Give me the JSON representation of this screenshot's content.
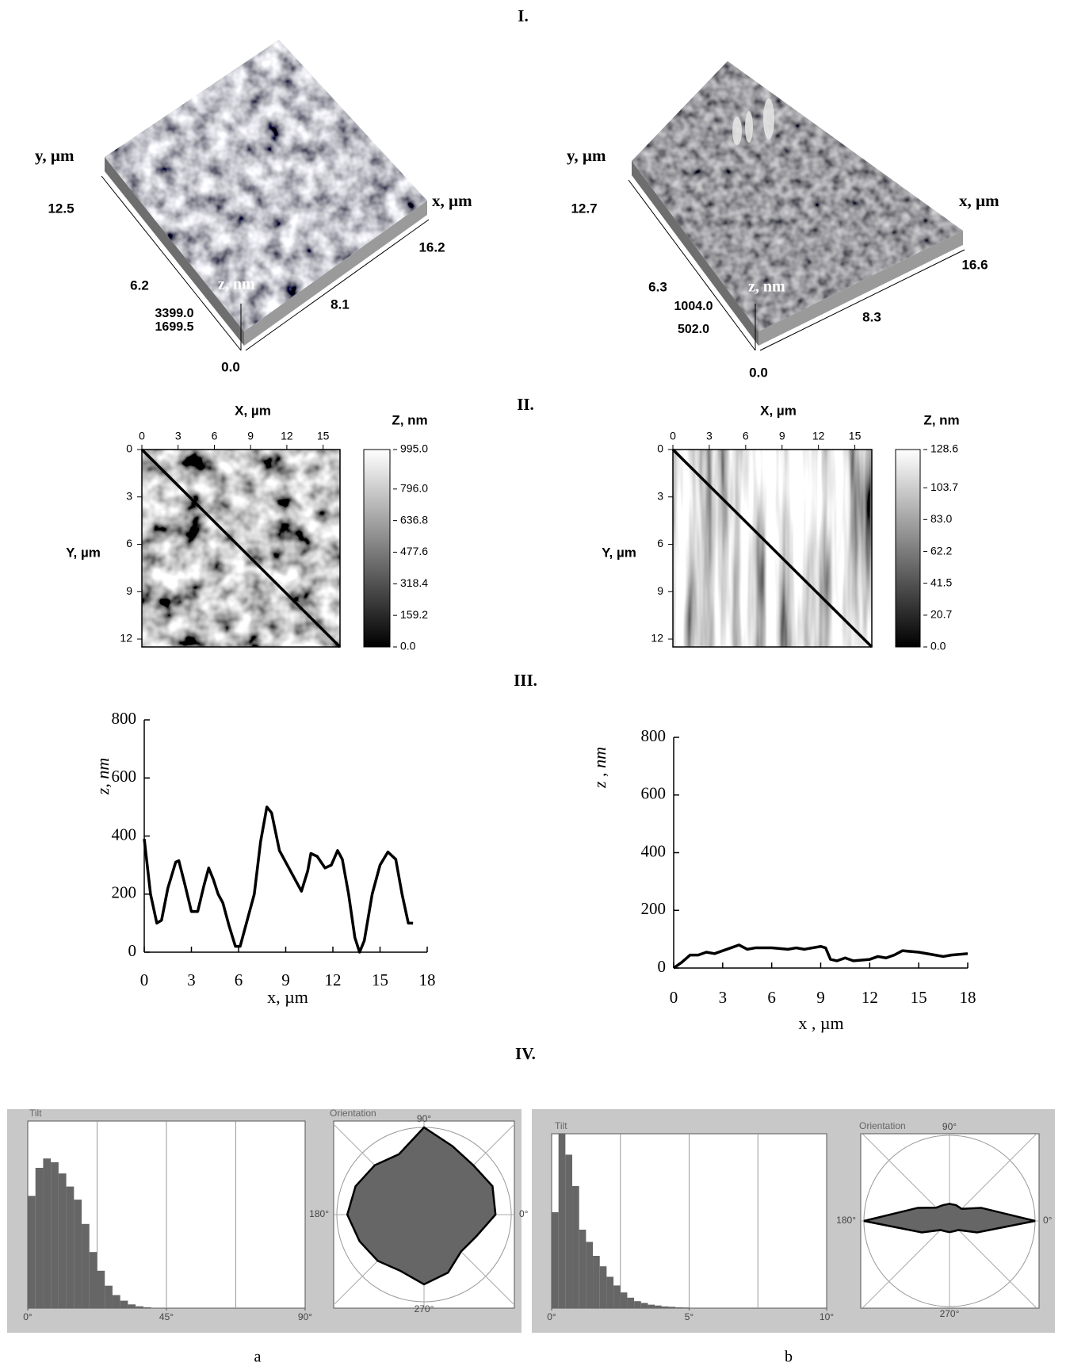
{
  "sections": [
    "I.",
    "II.",
    "III.",
    "IV."
  ],
  "surfaces": [
    {
      "y_label": "y, µm",
      "x_label": "x, µm",
      "z_label": "z, nm",
      "y_ticks": [
        "12.5",
        "6.2"
      ],
      "x_ticks": [
        "16.2",
        "8.1"
      ],
      "z_ticks": [
        "3399.0",
        "1699.5"
      ],
      "origin": "0.0"
    },
    {
      "y_label": "y, µm",
      "x_label": "x, µm",
      "z_label": "z, nm",
      "y_ticks": [
        "12.7",
        "6.3"
      ],
      "x_ticks": [
        "16.6",
        "8.3"
      ],
      "z_ticks": [
        "1004.0",
        "502.0"
      ],
      "origin": "0.0"
    }
  ],
  "maps": [
    {
      "x_label": "X, µm",
      "y_label": "Y, µm",
      "z_label": "Z, nm",
      "xlim": [
        0,
        16.4
      ],
      "xticks": [
        0,
        3,
        6,
        9,
        12,
        15
      ],
      "ylim": [
        0,
        12.5
      ],
      "yticks": [
        0,
        3,
        6,
        9,
        12
      ],
      "zlim": [
        0,
        995
      ],
      "zticks": [
        {
          "value": 995,
          "label": "995.0"
        },
        {
          "value": 796,
          "label": "796.0"
        },
        {
          "value": 636.8,
          "label": "636.8"
        },
        {
          "value": 477.6,
          "label": "477.6"
        },
        {
          "value": 318.4,
          "label": "318.4"
        },
        {
          "value": 159.2,
          "label": "159.2"
        },
        {
          "value": 0,
          "label": "0.0"
        }
      ]
    },
    {
      "x_label": "X, µm",
      "y_label": "Y, µm",
      "z_label": "Z, nm",
      "xlim": [
        0,
        16.4
      ],
      "xticks": [
        0,
        3,
        6,
        9,
        12,
        15
      ],
      "ylim": [
        0,
        12.5
      ],
      "yticks": [
        0,
        3,
        6,
        9,
        12
      ],
      "zlim": [
        0,
        128.6
      ],
      "zticks": [
        {
          "value": 128.6,
          "label": "128.6"
        },
        {
          "value": 103.7,
          "label": "103.7"
        },
        {
          "value": 83,
          "label": "83.0"
        },
        {
          "value": 62.2,
          "label": "62.2"
        },
        {
          "value": 41.5,
          "label": "41.5"
        },
        {
          "value": 20.7,
          "label": "20.7"
        },
        {
          "value": 0,
          "label": "0.0"
        }
      ]
    }
  ],
  "chart_data": [
    {
      "type": "line",
      "x_label": "x,  µm",
      "y_label": "z, nm",
      "color": "#000000",
      "x": [
        0,
        0.4,
        0.8,
        1.1,
        1.5,
        2,
        2.2,
        2.6,
        3,
        3.4,
        3.8,
        4.1,
        4.4,
        4.7,
        5,
        5.4,
        5.8,
        6.1,
        6.5,
        7,
        7.4,
        7.8,
        8.1,
        8.6,
        9.3,
        10,
        10.4,
        10.6,
        11,
        11.5,
        11.9,
        12.3,
        12.6,
        13,
        13.4,
        13.7,
        14,
        14.5,
        15,
        15.5,
        16,
        16.4,
        16.8,
        17.1
      ],
      "values": [
        390,
        200,
        100,
        110,
        220,
        310,
        315,
        230,
        140,
        140,
        230,
        290,
        250,
        200,
        170,
        90,
        20,
        20,
        100,
        200,
        380,
        500,
        480,
        350,
        280,
        210,
        280,
        340,
        330,
        290,
        300,
        350,
        320,
        200,
        50,
        0,
        40,
        200,
        300,
        345,
        320,
        200,
        100,
        100
      ],
      "xlim": [
        0,
        18
      ],
      "ylim": [
        0,
        800
      ],
      "xticks": [
        0,
        3,
        6,
        9,
        12,
        15,
        18
      ],
      "yticks": [
        0,
        200,
        400,
        600,
        800
      ]
    },
    {
      "type": "line",
      "x_label": "x , µm",
      "y_label": "z , nm",
      "color": "#000000",
      "x": [
        0,
        0.5,
        1,
        1.5,
        2,
        2.5,
        3,
        3.5,
        4,
        4.5,
        5,
        6,
        7,
        7.5,
        8,
        9,
        9.3,
        9.6,
        10,
        10.5,
        11,
        12,
        12.5,
        13,
        13.5,
        14,
        15,
        16,
        16.5,
        17,
        18
      ],
      "values": [
        0,
        20,
        45,
        45,
        55,
        50,
        60,
        70,
        80,
        65,
        70,
        70,
        65,
        70,
        65,
        75,
        70,
        30,
        25,
        35,
        25,
        30,
        40,
        35,
        45,
        60,
        55,
        45,
        40,
        45,
        50
      ],
      "xlim": [
        0,
        18
      ],
      "ylim": [
        0,
        800
      ],
      "xticks": [
        0,
        3,
        6,
        9,
        12,
        15,
        18
      ],
      "yticks": [
        0,
        200,
        400,
        600,
        800
      ]
    },
    {
      "type": "histogram",
      "title": "Tilt",
      "color": "#666666",
      "bins": [
        0,
        2.5,
        5,
        7.5,
        10,
        12.5,
        15,
        17.5,
        20,
        22.5,
        25,
        27.5,
        30,
        32.5,
        35,
        37.5,
        40
      ],
      "values": [
        60,
        75,
        80,
        78,
        72,
        65,
        58,
        45,
        30,
        20,
        12,
        7,
        4,
        2,
        1,
        0.5
      ],
      "xlim": [
        0,
        90
      ],
      "ylim": [
        0,
        100
      ],
      "xgrid": [
        22.5,
        45,
        67.5
      ],
      "xticks": [
        {
          "value": 0,
          "label": "0°"
        },
        {
          "value": 45,
          "label": "45°"
        },
        {
          "value": 90,
          "label": "90°"
        }
      ]
    },
    {
      "type": "polar",
      "title": "Orientation",
      "color": "#666666",
      "angles": [
        0,
        22.5,
        45,
        67.5,
        90,
        112.5,
        135,
        157.5,
        180,
        202.5,
        225,
        247.5,
        270,
        292.5,
        315,
        337.5
      ],
      "values": [
        82,
        85,
        80,
        85,
        100,
        75,
        80,
        85,
        88,
        80,
        75,
        70,
        80,
        72,
        60,
        65
      ],
      "rlim": [
        0,
        100
      ],
      "angle_ticks": [
        {
          "value": 90,
          "label": "90°"
        },
        {
          "value": 180,
          "label": "180°"
        },
        {
          "value": 0,
          "label": "0°"
        },
        {
          "value": 270,
          "label": "270°"
        }
      ]
    },
    {
      "type": "histogram",
      "title": "Tilt",
      "color": "#666666",
      "bins": [
        0,
        0.25,
        0.5,
        0.75,
        1,
        1.25,
        1.5,
        1.75,
        2,
        2.25,
        2.5,
        2.75,
        3,
        3.25,
        3.5,
        3.75,
        4,
        4.25,
        4.5,
        4.75,
        5
      ],
      "values": [
        55,
        100,
        88,
        70,
        45,
        38,
        30,
        24,
        18,
        13,
        9,
        6,
        4,
        3,
        2,
        1.5,
        1,
        0.8,
        0.5,
        0.4
      ],
      "xlim": [
        0,
        10
      ],
      "ylim": [
        0,
        100
      ],
      "xgrid": [
        2.5,
        5,
        7.5
      ],
      "xticks": [
        {
          "value": 0,
          "label": "0°"
        },
        {
          "value": 5,
          "label": "5°"
        },
        {
          "value": 10,
          "label": "10°"
        }
      ]
    },
    {
      "type": "polar",
      "title": "Orientation",
      "color": "#666666",
      "angles": [
        0,
        22.5,
        45,
        67.5,
        90,
        112.5,
        135,
        157.5,
        180,
        202.5,
        225,
        247.5,
        270,
        292.5,
        315,
        337.5
      ],
      "values": [
        100,
        40,
        20,
        20,
        20,
        20,
        22,
        40,
        100,
        35,
        15,
        13,
        13,
        13,
        15,
        35
      ],
      "rlim": [
        0,
        100
      ],
      "angle_ticks": [
        {
          "value": 90,
          "label": "90°"
        },
        {
          "value": 180,
          "label": "180°"
        },
        {
          "value": 0,
          "label": "0°"
        },
        {
          "value": 270,
          "label": "270°"
        }
      ]
    }
  ],
  "captions": [
    "a",
    "b"
  ]
}
